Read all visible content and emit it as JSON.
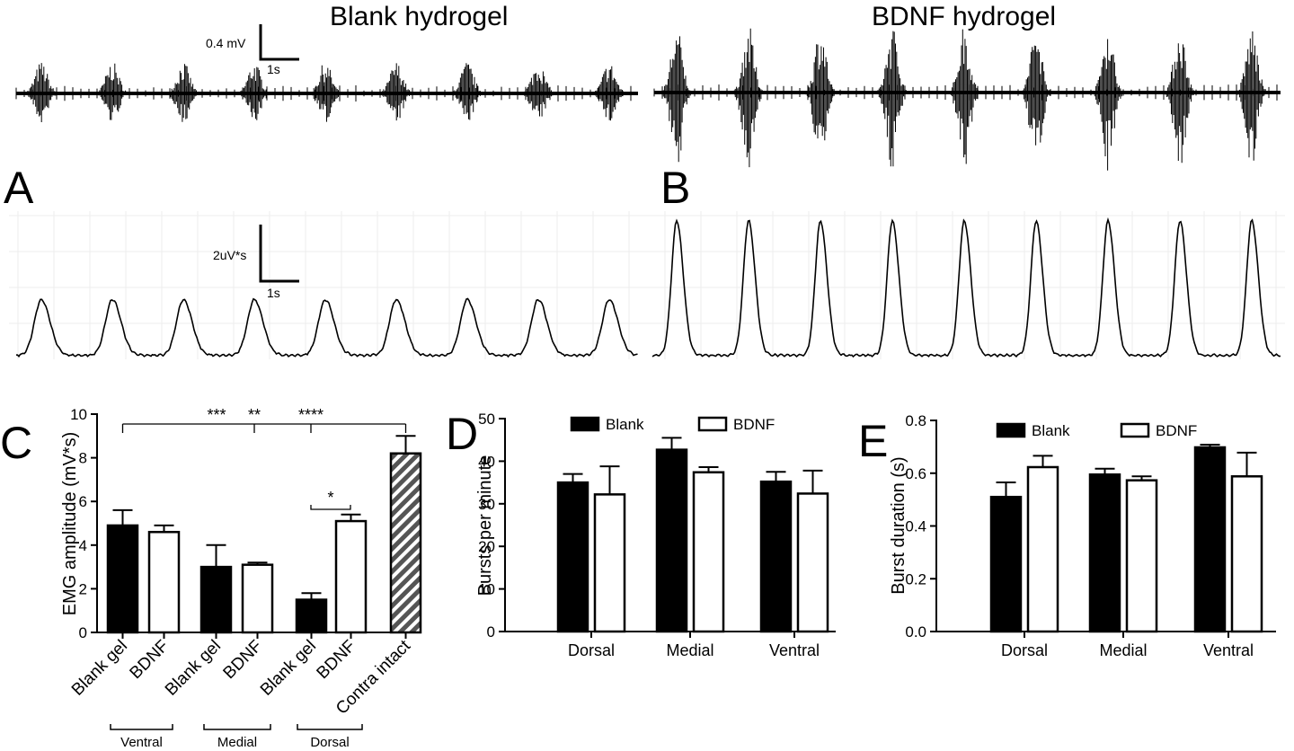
{
  "colors": {
    "ink": "#000000",
    "bdnf_fill": "#ffffff",
    "hatch": "#555555",
    "grid": "#eeeeee"
  },
  "traces": {
    "titles": {
      "blank": "Blank hydrogel",
      "bdnf": "BDNF hydrogel"
    },
    "emg_scalebar": {
      "amplitude": "0.4 mV",
      "time": "1s"
    },
    "integrated_scalebar": {
      "amplitude": "2uV*s",
      "time": "1s"
    },
    "panel_letters": {
      "A": "A",
      "B": "B"
    },
    "burst_count": 9
  },
  "chart_data": [
    {
      "panel": "C",
      "type": "bar",
      "ylabel": "EMG amplitude (mV*s)",
      "ylim": [
        0,
        10
      ],
      "yticks": [
        0,
        2,
        4,
        6,
        8,
        10
      ],
      "categories": [
        "Blank gel",
        "BDNF",
        "Blank gel",
        "BDNF",
        "Blank gel",
        "BDNF",
        "Contra intact"
      ],
      "values": [
        4.9,
        4.6,
        3.0,
        3.1,
        1.5,
        5.1,
        8.2
      ],
      "errors": [
        0.7,
        0.3,
        1.0,
        0.1,
        0.3,
        0.3,
        0.8
      ],
      "fills": [
        "black",
        "white",
        "black",
        "white",
        "black",
        "white",
        "hatched"
      ],
      "groups": [
        {
          "label": "Ventral",
          "members": [
            0,
            1
          ]
        },
        {
          "label": "Medial",
          "members": [
            2,
            3
          ]
        },
        {
          "label": "Dorsal",
          "members": [
            4,
            5
          ]
        }
      ],
      "significance": [
        {
          "label": "***",
          "compare": [
            0,
            6
          ]
        },
        {
          "label": "**",
          "compare": [
            2,
            6
          ]
        },
        {
          "label": "****",
          "compare": [
            4,
            6
          ]
        },
        {
          "label": "*",
          "compare": [
            4,
            5
          ]
        }
      ]
    },
    {
      "panel": "D",
      "type": "bar",
      "ylabel": "Bursts per minute",
      "ylim": [
        0,
        50
      ],
      "yticks": [
        0,
        10,
        20,
        30,
        40,
        50
      ],
      "categories": [
        "Dorsal",
        "Medial",
        "Ventral"
      ],
      "series": [
        {
          "name": "Blank",
          "values": [
            35,
            42.7,
            35.2
          ],
          "errors": [
            2,
            2.8,
            2.3
          ]
        },
        {
          "name": "BDNF",
          "values": [
            32.2,
            37.4,
            32.4
          ],
          "errors": [
            6.6,
            1.2,
            5.4
          ]
        }
      ],
      "legend": "top"
    },
    {
      "panel": "E",
      "type": "bar",
      "ylabel": "Burst duration (s)",
      "ylim": [
        0,
        0.8
      ],
      "yticks": [
        "0.0",
        "0.2",
        "0.4",
        "0.6",
        "0.8"
      ],
      "categories": [
        "Dorsal",
        "Medial",
        "Ventral"
      ],
      "series": [
        {
          "name": "Blank",
          "values": [
            0.51,
            0.595,
            0.698
          ],
          "errors": [
            0.055,
            0.022,
            0.01
          ]
        },
        {
          "name": "BDNF",
          "values": [
            0.623,
            0.573,
            0.588
          ],
          "errors": [
            0.043,
            0.015,
            0.09
          ]
        }
      ],
      "legend": "top"
    }
  ]
}
